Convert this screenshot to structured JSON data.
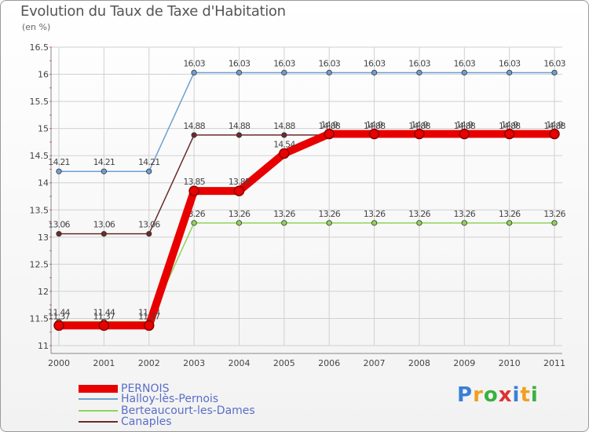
{
  "chart_data": {
    "type": "line",
    "title": "Evolution du Taux de Taxe d'Habitation",
    "subtitle": "(en %)",
    "xlabel": "",
    "ylabel": "",
    "categories": [
      "2000",
      "2001",
      "2002",
      "2003",
      "2004",
      "2005",
      "2006",
      "2007",
      "2008",
      "2009",
      "2010",
      "2011"
    ],
    "ylim": [
      11,
      16.5
    ],
    "yticks": [
      "11",
      "11.5",
      "12",
      "12.5",
      "13",
      "13.5",
      "14",
      "14.5",
      "15",
      "15.5",
      "16",
      "16.5"
    ],
    "series": [
      {
        "name": "Halloy-lès-Pernois",
        "color": "#6f9fd0",
        "values": [
          14.21,
          14.21,
          14.21,
          16.03,
          16.03,
          16.03,
          16.03,
          16.03,
          16.03,
          16.03,
          16.03,
          16.03
        ],
        "labels": [
          "14.21",
          "14.21",
          "14.21",
          "16.03",
          "16.03",
          "16.03",
          "16.03",
          "16.03",
          "16.03",
          "16.03",
          "16.03",
          "16.03"
        ]
      },
      {
        "name": "Canaples",
        "color": "#6b2b2b",
        "values": [
          13.06,
          13.06,
          13.06,
          14.88,
          14.88,
          14.88,
          14.88,
          14.88,
          14.88,
          14.88,
          14.88,
          14.88
        ],
        "labels": [
          "13.06",
          "13.06",
          "13.06",
          "14.88",
          "14.88",
          "14.88",
          "14.88",
          "14.88",
          "14.88",
          "14.88",
          "14.88",
          "14.88"
        ]
      },
      {
        "name": "Berteaucourt-les-Dames",
        "color": "#8fd45a",
        "values": [
          11.44,
          11.44,
          11.44,
          13.26,
          13.26,
          13.26,
          13.26,
          13.26,
          13.26,
          13.26,
          13.26,
          13.26
        ],
        "labels": [
          "11.44",
          "11.44",
          "11.44",
          "13.26",
          "13.26",
          "13.26",
          "13.26",
          "13.26",
          "13.26",
          "13.26",
          "13.26",
          "13.26"
        ]
      },
      {
        "name": "PERNOIS",
        "color": "#e80000",
        "values": [
          11.37,
          11.37,
          11.37,
          13.85,
          13.85,
          14.54,
          14.9,
          14.9,
          14.9,
          14.9,
          14.9,
          14.9
        ],
        "labels": [
          "11.37",
          "11.37",
          "11.37",
          "13.85",
          "13.85",
          "14.54",
          "14.9",
          "14.9",
          "14.9",
          "14.9",
          "14.9",
          "14.9"
        ]
      }
    ],
    "legend": [
      "PERNOIS",
      "Halloy-lès-Pernois",
      "Berteaucourt-les-Dames",
      "Canaples"
    ]
  },
  "legend_colors": {
    "PERNOIS": "#e80000",
    "Halloy-lès-Pernois": "#6f9fd0",
    "Berteaucourt-les-Dames": "#8fd45a",
    "Canaples": "#6b2b2b"
  },
  "brand": {
    "letters": [
      "P",
      "r",
      "o",
      "x",
      "i",
      "t",
      "i"
    ],
    "colors": [
      "#3a7fd6",
      "#f0a020",
      "#3ab040",
      "#e03030",
      "#3a7fd6",
      "#f0a020",
      "#3ab040"
    ]
  }
}
